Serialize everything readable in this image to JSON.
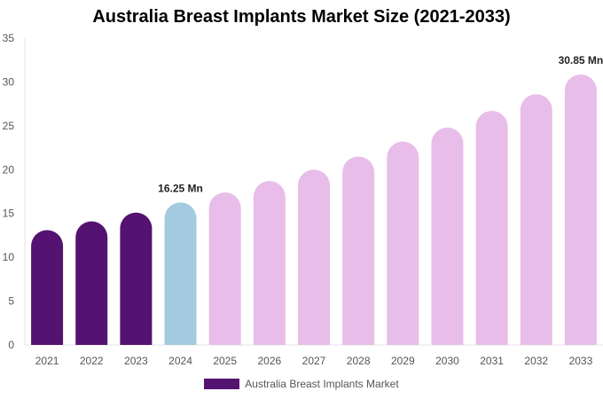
{
  "chart_data": {
    "type": "bar",
    "title": "Australia Breast Implants Market Size (2021-2033)",
    "categories": [
      "2021",
      "2022",
      "2023",
      "2024",
      "2025",
      "2026",
      "2027",
      "2028",
      "2029",
      "2030",
      "2031",
      "2032",
      "2033"
    ],
    "series": [
      {
        "name": "Australia Breast Implants Market",
        "values": [
          13.1,
          14.1,
          15.1,
          16.25,
          17.4,
          18.7,
          20.0,
          21.5,
          23.2,
          24.8,
          26.7,
          28.6,
          30.85
        ]
      }
    ],
    "data_labels": {
      "3": "16.25 Mn",
      "12": "30.85 Mn"
    },
    "bar_colors": {
      "historical": "#541370",
      "base_year": "#a3cadf",
      "forecast": "#e8bde9"
    },
    "color_groups": [
      "historical",
      "historical",
      "historical",
      "base_year",
      "forecast",
      "forecast",
      "forecast",
      "forecast",
      "forecast",
      "forecast",
      "forecast",
      "forecast",
      "forecast"
    ],
    "ylim": [
      0,
      35
    ],
    "yticks": [
      0,
      5,
      10,
      15,
      20,
      25,
      30,
      35
    ],
    "xlabel": "",
    "ylabel": "",
    "grid": false,
    "legend_position": "bottom"
  }
}
